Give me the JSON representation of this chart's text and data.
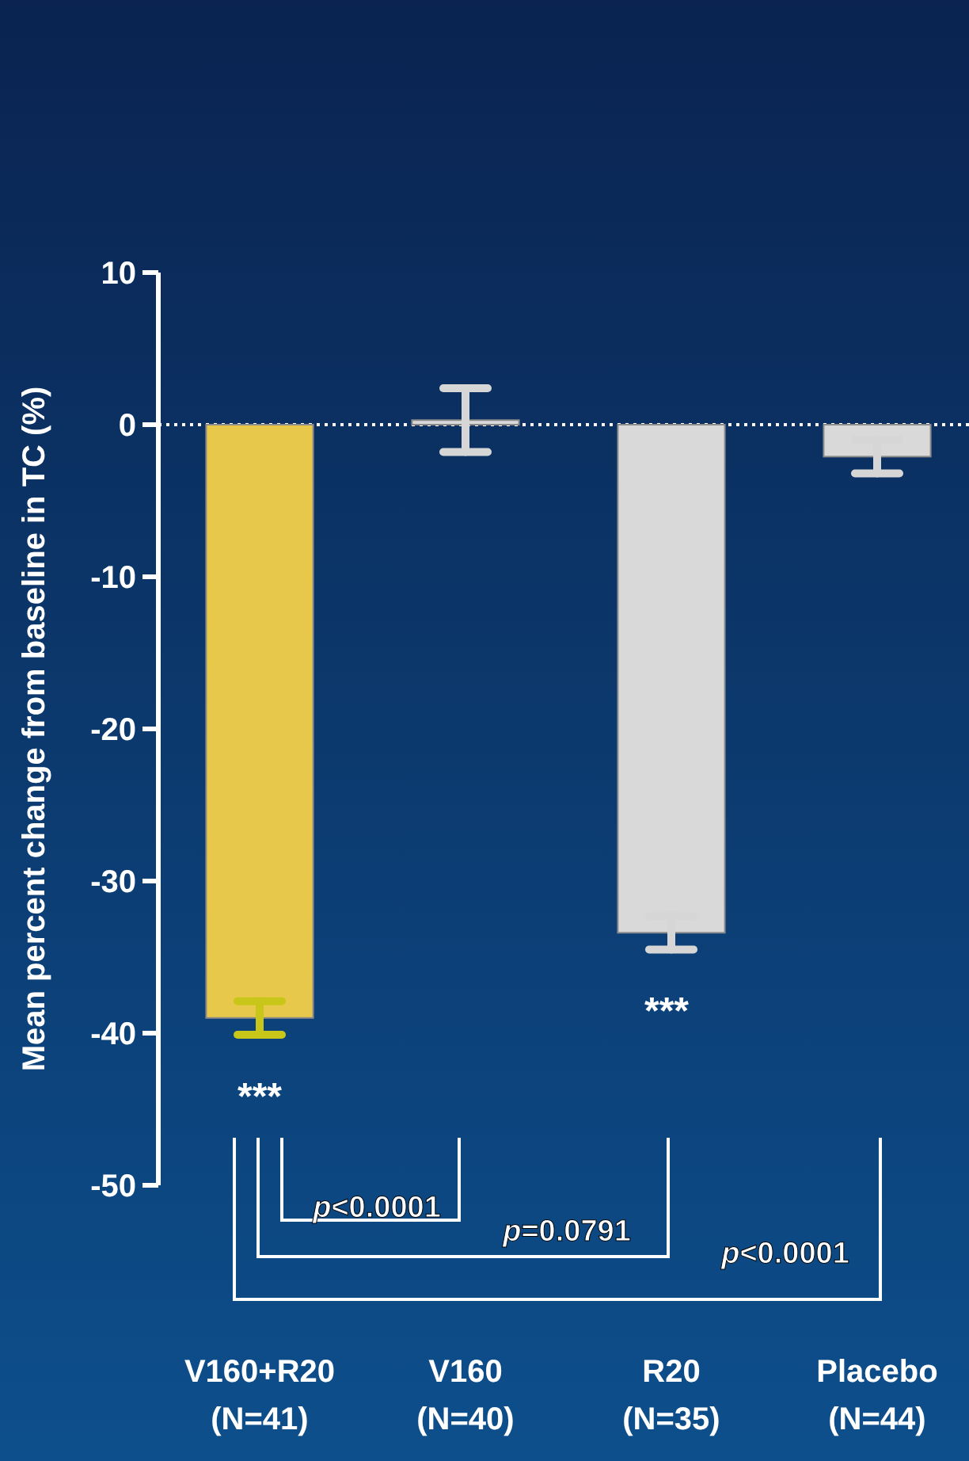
{
  "chart_data": {
    "type": "bar",
    "ylabel": "Mean percent change from baseline in TC (%)",
    "categories": [
      "V160+R20\n(N=41)",
      "V160\n(N=40)",
      "R20\n(N=35)",
      "Placebo\n(N=44)"
    ],
    "values": [
      -39,
      0.3,
      -33.4,
      -2.1
    ],
    "colors": [
      "#e8c84a",
      "#d9d9d9",
      "#d9d9d9",
      "#d9d9d9"
    ],
    "errors": [
      1.1,
      2.1,
      1.1,
      1.1
    ],
    "ylim": [
      -50,
      10
    ],
    "yticks": [
      -50,
      -40,
      -30,
      -20,
      -10,
      0,
      10
    ],
    "ref_lines": [
      {
        "axis": "y",
        "value": 0,
        "color": "#ffffff",
        "line_style": "dotted"
      }
    ],
    "annotations": [
      "***",
      "***",
      "p<0.0001",
      "p=0.0791",
      "p<0.0001"
    ]
  }
}
